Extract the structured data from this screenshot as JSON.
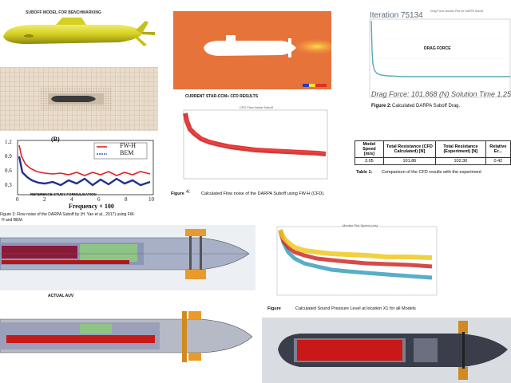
{
  "suboff_panel": {
    "title": "SUBOFF MODEL FOR BENCHMARKING"
  },
  "cfd_panel": {
    "subtitle": "CURRENT STAR-CCM+ CFD RESULTS"
  },
  "drag_panel": {
    "iteration": "Iteration 75134",
    "chart_title": "Drag Force Monitor Plot for DARPA Suboff",
    "inner_label": "DRAG FORCE",
    "drag_force": "Drag Force: 101.868 (N)",
    "solution_time": "Solution Time 1.25",
    "figure_label": "Figure 2:",
    "caption": "Calculated DARPA Suboff Drag."
  },
  "reference_panel": {
    "tag": "(B)",
    "legend": [
      "FW-H",
      "BEM"
    ],
    "overlay": "REFERENCE STUDY FORMULISATION",
    "xlabel": "Frequency × 100",
    "yticks": [
      "1.2",
      "0.9",
      "0.6",
      "0.3"
    ],
    "xticks": [
      "0",
      "2",
      "4",
      "6",
      "8",
      "10"
    ],
    "caption_line1": "Figure 3:  Flow noise of the DARPA Suboff by (H. Yao et al., 2017) using FW-",
    "caption_line2": "H and BEM."
  },
  "flow_noise_panel": {
    "chart_title": "CFD Flow Noise Suboff",
    "figure_label": "Figure",
    "figure_num": "4:",
    "caption": "Calculated Flow noise of the DARPA Suboff using FW-H (CFD)."
  },
  "results_table": {
    "headers": [
      "Model Speed [m/s]",
      "Total Resistance (CFD Calculated) [N]",
      "Total Resistance (Experiment) [N]",
      "Relative Er..."
    ],
    "rows": [
      [
        "3.05",
        "101.86",
        "102.30",
        "0.42"
      ]
    ],
    "caption_label": "Table 1:",
    "caption": "Comparison of the CFD results with the experiment"
  },
  "auv_panel": {
    "label": "ACTUAL AUV"
  },
  "spl_panel": {
    "chart_title": "Monitor Plot Speed (m/s)",
    "figure_label": "Figure",
    "caption": "Calculated Sound Pressure Level at location X1 for all Models"
  },
  "colors": {
    "hull_yellow": "#d8d32a",
    "fw_h_red": "#e02020",
    "bem_blue": "#203090",
    "drag_line": "#5aa6b8",
    "cfd_bg": "#e87a3c"
  }
}
